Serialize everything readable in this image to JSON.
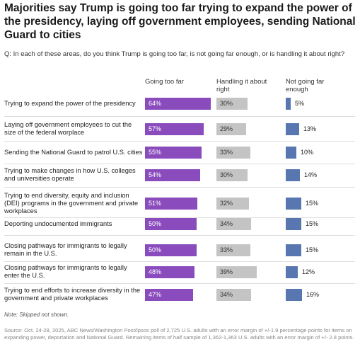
{
  "title": "Majorities say Trump is going too far trying to expand the power of the presidency, laying off government employees, sending National Guard to cities",
  "question": "Q: In each of these areas, do you think Trump is going too far, is not going far enough, or is handling it about right?",
  "note": "Note: Skipped not shown.",
  "source": "Source: Oct. 24-28, 2025, ABC News/Washington Post/Ipsos poll of 2,725 U.S. adults with an error margin of +/-1.9 percentage points for items on expanding power, deportation and National Guard. Remaining items of half sample of 1,362-1,363 U.S. adults with an error margin of +/- 2.8 points.",
  "colors": {
    "going_too_far": "#8a4cbd",
    "handling_about_right": "#c4c4c4",
    "not_going_far_enough": "#5876b0"
  },
  "chart_data": {
    "type": "bar",
    "orientation": "horizontal",
    "value_suffix": "%",
    "categories": [
      "Trying to expand the power of the presidency",
      "Laying off government employees to cut the size of the federal worplace",
      "Sending the National Guard to patrol U.S. cities",
      "Trying to make changes in how U.S. colleges and universities operate",
      "Trying to end diversity, equity and inclusion (DEI) programs in the government and private workplaces",
      "Deporting undocumented immigrants",
      "Closing pathways for immigrants to legally remain in the U.S.",
      "Closing pathways for immigrants to legally enter the U.S.",
      "Trying to end efforts to increase diversity in the government and private workplaces"
    ],
    "series": [
      {
        "name": "Going too far",
        "values": [
          64,
          57,
          55,
          54,
          51,
          50,
          50,
          48,
          47
        ]
      },
      {
        "name": "Handling it about right",
        "values": [
          30,
          29,
          33,
          30,
          32,
          34,
          33,
          39,
          34
        ]
      },
      {
        "name": "Not going far enough",
        "values": [
          5,
          13,
          10,
          14,
          15,
          15,
          15,
          12,
          16
        ]
      }
    ]
  }
}
